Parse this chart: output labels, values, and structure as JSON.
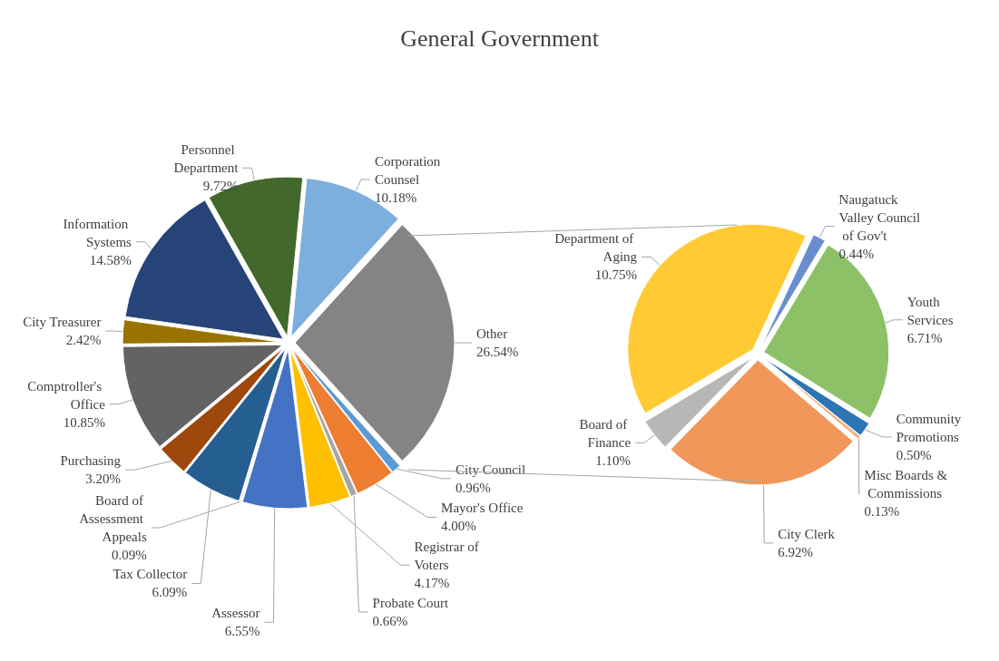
{
  "chart_data": [
    {
      "type": "pie",
      "title": "General Government",
      "categories": [
        "Corporation Counsel",
        "Other",
        "City Council",
        "Mayor's Office",
        "Probate Court",
        "Registrar of Voters",
        "Assessor",
        "Board of Assessment Appeals",
        "Tax Collector",
        "Purchasing",
        "Comptroller's Office",
        "City Treasurer",
        "Information Systems",
        "Personnel Department"
      ],
      "values": [
        10.18,
        26.54,
        0.96,
        4.0,
        0.66,
        4.17,
        6.55,
        0.09,
        6.09,
        3.2,
        10.85,
        2.42,
        14.58,
        9.72
      ],
      "value_labels": [
        "10.18%",
        "26.54%",
        "0.96%",
        "4.00%",
        "0.66%",
        "4.17%",
        "6.55%",
        "0.09%",
        "6.09%",
        "3.20%",
        "10.85%",
        "2.42%",
        "14.58%",
        "9.72%"
      ],
      "colors": [
        "#7cafdd",
        "#848484",
        "#5b9bd5",
        "#ed7d31",
        "#a5a5a5",
        "#ffc000",
        "#4472c4",
        "#70ad47",
        "#255e91",
        "#9e480e",
        "#636363",
        "#997300",
        "#264478",
        "#43682b"
      ],
      "legend": false
    },
    {
      "type": "pie",
      "categories": [
        "Naugatuck Valley Council of Gov't",
        "Youth Services",
        "Community Promotions",
        "Misc Boards & Commissions",
        "City Clerk",
        "Board of Finance",
        "Department of Aging"
      ],
      "values": [
        0.44,
        6.71,
        0.5,
        0.13,
        6.92,
        1.1,
        10.75
      ],
      "value_labels": [
        "0.44%",
        "6.71%",
        "0.50%",
        "0.13%",
        "6.92%",
        "1.10%",
        "10.75%"
      ],
      "colors": [
        "#698ed0",
        "#8cc168",
        "#2e75b6",
        "#f4b183",
        "#f1975a",
        "#b7b7b7",
        "#ffca33"
      ],
      "legend": false
    }
  ]
}
